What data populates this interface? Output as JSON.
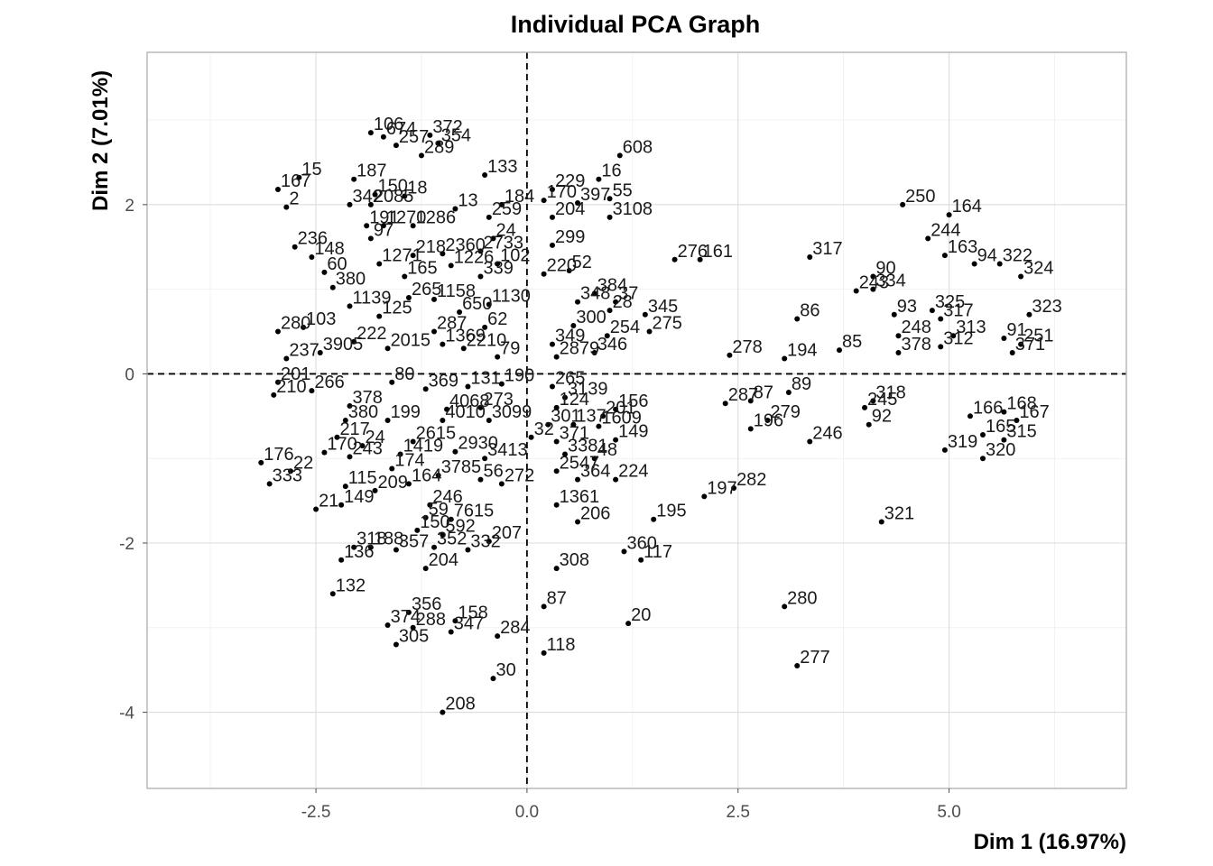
{
  "chart_data": {
    "type": "scatter",
    "title": "Individual PCA Graph",
    "xlabel": "Dim 1 (16.97%)",
    "ylabel": "Dim 2 (7.01%)",
    "xlim": [
      -4.5,
      7.1
    ],
    "ylim": [
      -4.9,
      3.8
    ],
    "x_ticks": [
      -2.5,
      0.0,
      2.5,
      5.0
    ],
    "x_tick_labels": [
      "-2.5",
      "0.0",
      "2.5",
      "5.0"
    ],
    "y_ticks": [
      -4,
      -2,
      0,
      2
    ],
    "y_tick_labels": [
      "-4",
      "-2",
      "0",
      "2"
    ],
    "grid": true,
    "reference_lines": {
      "x": 0,
      "y": 0,
      "style": "dashed"
    },
    "point_color": "#000000",
    "points": [
      {
        "label": "106",
        "x": -1.85,
        "y": 2.85
      },
      {
        "label": "674",
        "x": -1.7,
        "y": 2.8
      },
      {
        "label": "372",
        "x": -1.15,
        "y": 2.82
      },
      {
        "label": "354",
        "x": -1.05,
        "y": 2.72
      },
      {
        "label": "257",
        "x": -1.55,
        "y": 2.7
      },
      {
        "label": "289",
        "x": -1.25,
        "y": 2.58
      },
      {
        "label": "15",
        "x": -2.7,
        "y": 2.32
      },
      {
        "label": "167",
        "x": -2.95,
        "y": 2.18
      },
      {
        "label": "2",
        "x": -2.85,
        "y": 1.97
      },
      {
        "label": "187",
        "x": -2.05,
        "y": 2.3
      },
      {
        "label": "150",
        "x": -1.8,
        "y": 2.12
      },
      {
        "label": "18",
        "x": -1.45,
        "y": 2.1
      },
      {
        "label": "342",
        "x": -2.1,
        "y": 2.0
      },
      {
        "label": "2085",
        "x": -1.85,
        "y": 2.0
      },
      {
        "label": "191",
        "x": -1.9,
        "y": 1.75
      },
      {
        "label": "97",
        "x": -1.85,
        "y": 1.6
      },
      {
        "label": "1270",
        "x": -1.7,
        "y": 1.75
      },
      {
        "label": "1286",
        "x": -1.35,
        "y": 1.75
      },
      {
        "label": "13",
        "x": -0.85,
        "y": 1.95
      },
      {
        "label": "259",
        "x": -0.45,
        "y": 1.85
      },
      {
        "label": "133",
        "x": -0.5,
        "y": 2.35
      },
      {
        "label": "184",
        "x": -0.3,
        "y": 2.0
      },
      {
        "label": "24",
        "x": -0.4,
        "y": 1.6
      },
      {
        "label": "236",
        "x": -2.75,
        "y": 1.5
      },
      {
        "label": "148",
        "x": -2.55,
        "y": 1.38
      },
      {
        "label": "60",
        "x": -2.4,
        "y": 1.2
      },
      {
        "label": "380",
        "x": -2.3,
        "y": 1.02
      },
      {
        "label": "1271",
        "x": -1.75,
        "y": 1.3
      },
      {
        "label": "218",
        "x": -1.35,
        "y": 1.4
      },
      {
        "label": "165",
        "x": -1.45,
        "y": 1.15
      },
      {
        "label": "2360",
        "x": -1.0,
        "y": 1.42
      },
      {
        "label": "1226",
        "x": -0.9,
        "y": 1.28
      },
      {
        "label": "2733",
        "x": -0.55,
        "y": 1.45
      },
      {
        "label": "102",
        "x": -0.35,
        "y": 1.3
      },
      {
        "label": "339",
        "x": -0.55,
        "y": 1.15
      },
      {
        "label": "1139",
        "x": -2.1,
        "y": 0.8
      },
      {
        "label": "125",
        "x": -1.75,
        "y": 0.68
      },
      {
        "label": "265",
        "x": -1.4,
        "y": 0.9
      },
      {
        "label": "1158",
        "x": -1.1,
        "y": 0.88
      },
      {
        "label": "650",
        "x": -0.8,
        "y": 0.73
      },
      {
        "label": "1130",
        "x": -0.45,
        "y": 0.82
      },
      {
        "label": "62",
        "x": -0.5,
        "y": 0.55
      },
      {
        "label": "2210",
        "x": -0.75,
        "y": 0.3
      },
      {
        "label": "79",
        "x": -0.35,
        "y": 0.2
      },
      {
        "label": "280",
        "x": -2.95,
        "y": 0.5
      },
      {
        "label": "103",
        "x": -2.65,
        "y": 0.55
      },
      {
        "label": "237",
        "x": -2.85,
        "y": 0.18
      },
      {
        "label": "3905",
        "x": -2.45,
        "y": 0.25
      },
      {
        "label": "222",
        "x": -2.05,
        "y": 0.38
      },
      {
        "label": "2015",
        "x": -1.65,
        "y": 0.3
      },
      {
        "label": "287",
        "x": -1.1,
        "y": 0.5
      },
      {
        "label": "1369",
        "x": -1.0,
        "y": 0.35
      },
      {
        "label": "201",
        "x": -2.95,
        "y": -0.1
      },
      {
        "label": "210",
        "x": -3.0,
        "y": -0.25
      },
      {
        "label": "266",
        "x": -2.55,
        "y": -0.2
      },
      {
        "label": "80",
        "x": -1.6,
        "y": -0.1
      },
      {
        "label": "369",
        "x": -1.2,
        "y": -0.18
      },
      {
        "label": "131",
        "x": -0.7,
        "y": -0.15
      },
      {
        "label": "190",
        "x": -0.3,
        "y": -0.12
      },
      {
        "label": "4068",
        "x": -0.95,
        "y": -0.42
      },
      {
        "label": "273",
        "x": -0.55,
        "y": -0.4
      },
      {
        "label": "378",
        "x": -2.1,
        "y": -0.38
      },
      {
        "label": "380b",
        "x": -2.15,
        "y": -0.55
      },
      {
        "label": "199",
        "x": -1.65,
        "y": -0.55
      },
      {
        "label": "4010",
        "x": -1.0,
        "y": -0.55
      },
      {
        "label": "3099",
        "x": -0.45,
        "y": -0.55
      },
      {
        "label": "217",
        "x": -2.25,
        "y": -0.75
      },
      {
        "label": "24b",
        "x": -1.95,
        "y": -0.85
      },
      {
        "label": "2615",
        "x": -1.35,
        "y": -0.8
      },
      {
        "label": "243",
        "x": -2.1,
        "y": -0.98
      },
      {
        "label": "1419",
        "x": -1.5,
        "y": -0.95
      },
      {
        "label": "174",
        "x": -1.6,
        "y": -1.12
      },
      {
        "label": "2930",
        "x": -0.85,
        "y": -0.92
      },
      {
        "label": "3413",
        "x": -0.5,
        "y": -1.0
      },
      {
        "label": "176",
        "x": -3.15,
        "y": -1.05
      },
      {
        "label": "333",
        "x": -3.05,
        "y": -1.3
      },
      {
        "label": "22",
        "x": -2.8,
        "y": -1.15
      },
      {
        "label": "170",
        "x": -2.4,
        "y": -0.93
      },
      {
        "label": "115",
        "x": -2.15,
        "y": -1.33
      },
      {
        "label": "209",
        "x": -1.8,
        "y": -1.38
      },
      {
        "label": "164b",
        "x": -1.4,
        "y": -1.3
      },
      {
        "label": "3785",
        "x": -1.05,
        "y": -1.2
      },
      {
        "label": "56",
        "x": -0.55,
        "y": -1.25
      },
      {
        "label": "272",
        "x": -0.3,
        "y": -1.3
      },
      {
        "label": "21",
        "x": -2.5,
        "y": -1.6
      },
      {
        "label": "149",
        "x": -2.2,
        "y": -1.55
      },
      {
        "label": "246b",
        "x": -1.15,
        "y": -1.55
      },
      {
        "label": "59",
        "x": -1.2,
        "y": -1.7
      },
      {
        "label": "7615",
        "x": -0.9,
        "y": -1.72
      },
      {
        "label": "150b",
        "x": -1.3,
        "y": -1.85
      },
      {
        "label": "592",
        "x": -1.0,
        "y": -1.9
      },
      {
        "label": "352",
        "x": -1.1,
        "y": -2.05
      },
      {
        "label": "332",
        "x": -0.7,
        "y": -2.08
      },
      {
        "label": "207",
        "x": -0.45,
        "y": -1.98
      },
      {
        "label": "318b",
        "x": -2.05,
        "y": -2.05
      },
      {
        "label": "188",
        "x": -1.85,
        "y": -2.05
      },
      {
        "label": "357",
        "x": -1.55,
        "y": -2.08
      },
      {
        "label": "136",
        "x": -2.2,
        "y": -2.2
      },
      {
        "label": "204",
        "x": -1.2,
        "y": -2.3
      },
      {
        "label": "132",
        "x": -2.3,
        "y": -2.6
      },
      {
        "label": "356",
        "x": -1.4,
        "y": -2.82
      },
      {
        "label": "374",
        "x": -1.65,
        "y": -2.97
      },
      {
        "label": "288",
        "x": -1.35,
        "y": -3.0
      },
      {
        "label": "305",
        "x": -1.55,
        "y": -3.2
      },
      {
        "label": "158",
        "x": -0.85,
        "y": -2.92
      },
      {
        "label": "347",
        "x": -0.9,
        "y": -3.05
      },
      {
        "label": "284",
        "x": -0.35,
        "y": -3.1
      },
      {
        "label": "30",
        "x": -0.4,
        "y": -3.6
      },
      {
        "label": "208",
        "x": -1.0,
        "y": -4.0
      },
      {
        "label": "608",
        "x": 1.1,
        "y": 2.58
      },
      {
        "label": "16",
        "x": 0.85,
        "y": 2.3
      },
      {
        "label": "229",
        "x": 0.3,
        "y": 2.18
      },
      {
        "label": "55",
        "x": 0.98,
        "y": 2.07
      },
      {
        "label": "170b",
        "x": 0.2,
        "y": 2.05
      },
      {
        "label": "397",
        "x": 0.6,
        "y": 2.02
      },
      {
        "label": "204b",
        "x": 0.3,
        "y": 1.85
      },
      {
        "label": "3108",
        "x": 0.98,
        "y": 1.85
      },
      {
        "label": "299",
        "x": 0.3,
        "y": 1.52
      },
      {
        "label": "220",
        "x": 0.2,
        "y": 1.18
      },
      {
        "label": "52",
        "x": 0.5,
        "y": 1.22
      },
      {
        "label": "384",
        "x": 0.8,
        "y": 0.95
      },
      {
        "label": "348",
        "x": 0.6,
        "y": 0.85
      },
      {
        "label": "37",
        "x": 1.05,
        "y": 0.85
      },
      {
        "label": "28",
        "x": 0.98,
        "y": 0.75
      },
      {
        "label": "300",
        "x": 0.55,
        "y": 0.57
      },
      {
        "label": "345",
        "x": 1.4,
        "y": 0.7
      },
      {
        "label": "254",
        "x": 0.95,
        "y": 0.45
      },
      {
        "label": "275",
        "x": 1.45,
        "y": 0.5
      },
      {
        "label": "349",
        "x": 0.3,
        "y": 0.35
      },
      {
        "label": "2879",
        "x": 0.35,
        "y": 0.2
      },
      {
        "label": "346",
        "x": 0.8,
        "y": 0.25
      },
      {
        "label": "276",
        "x": 1.75,
        "y": 1.35
      },
      {
        "label": "161",
        "x": 2.05,
        "y": 1.35
      },
      {
        "label": "265b",
        "x": 0.3,
        "y": -0.15
      },
      {
        "label": "3139",
        "x": 0.45,
        "y": -0.28
      },
      {
        "label": "124",
        "x": 0.35,
        "y": -0.4
      },
      {
        "label": "156",
        "x": 1.05,
        "y": -0.42
      },
      {
        "label": "201b",
        "x": 0.9,
        "y": -0.5
      },
      {
        "label": "301",
        "x": 0.25,
        "y": -0.6
      },
      {
        "label": "137",
        "x": 0.55,
        "y": -0.6
      },
      {
        "label": "1609",
        "x": 0.85,
        "y": -0.62
      },
      {
        "label": "32",
        "x": 0.05,
        "y": -0.75
      },
      {
        "label": "371",
        "x": 0.35,
        "y": -0.8
      },
      {
        "label": "149b",
        "x": 1.05,
        "y": -0.78
      },
      {
        "label": "3381",
        "x": 0.45,
        "y": -0.95
      },
      {
        "label": "48",
        "x": 0.8,
        "y": -1.0
      },
      {
        "label": "2547",
        "x": 0.35,
        "y": -1.15
      },
      {
        "label": "364",
        "x": 0.6,
        "y": -1.25
      },
      {
        "label": "224",
        "x": 1.05,
        "y": -1.25
      },
      {
        "label": "1361",
        "x": 0.35,
        "y": -1.55
      },
      {
        "label": "206",
        "x": 0.6,
        "y": -1.75
      },
      {
        "label": "195",
        "x": 1.5,
        "y": -1.72
      },
      {
        "label": "360",
        "x": 1.15,
        "y": -2.1
      },
      {
        "label": "117",
        "x": 1.35,
        "y": -2.2
      },
      {
        "label": "308",
        "x": 0.35,
        "y": -2.3
      },
      {
        "label": "87",
        "x": 0.2,
        "y": -2.75
      },
      {
        "label": "20",
        "x": 1.2,
        "y": -2.95
      },
      {
        "label": "118",
        "x": 0.2,
        "y": -3.3
      },
      {
        "label": "278",
        "x": 2.4,
        "y": 0.22
      },
      {
        "label": "194",
        "x": 3.05,
        "y": 0.18
      },
      {
        "label": "287b",
        "x": 2.35,
        "y": -0.35
      },
      {
        "label": "87b",
        "x": 2.65,
        "y": -0.32
      },
      {
        "label": "89",
        "x": 3.1,
        "y": -0.22
      },
      {
        "label": "279",
        "x": 2.85,
        "y": -0.55
      },
      {
        "label": "196",
        "x": 2.65,
        "y": -0.65
      },
      {
        "label": "246",
        "x": 3.35,
        "y": -0.8
      },
      {
        "label": "197",
        "x": 2.1,
        "y": -1.45
      },
      {
        "label": "282",
        "x": 2.45,
        "y": -1.35
      },
      {
        "label": "280b",
        "x": 3.05,
        "y": -2.75
      },
      {
        "label": "277",
        "x": 3.2,
        "y": -3.45
      },
      {
        "label": "317",
        "x": 3.35,
        "y": 1.38
      },
      {
        "label": "86",
        "x": 3.2,
        "y": 0.65
      },
      {
        "label": "85",
        "x": 3.7,
        "y": 0.28
      },
      {
        "label": "243b",
        "x": 3.9,
        "y": 0.98
      },
      {
        "label": "90",
        "x": 4.1,
        "y": 1.15
      },
      {
        "label": "334",
        "x": 4.1,
        "y": 1.0
      },
      {
        "label": "93",
        "x": 4.35,
        "y": 0.7
      },
      {
        "label": "325",
        "x": 4.8,
        "y": 0.75
      },
      {
        "label": "317b",
        "x": 4.9,
        "y": 0.65
      },
      {
        "label": "248",
        "x": 4.4,
        "y": 0.45
      },
      {
        "label": "313",
        "x": 5.05,
        "y": 0.45
      },
      {
        "label": "378b",
        "x": 4.4,
        "y": 0.25
      },
      {
        "label": "312",
        "x": 4.9,
        "y": 0.32
      },
      {
        "label": "318",
        "x": 4.1,
        "y": -0.32
      },
      {
        "label": "245",
        "x": 4.0,
        "y": -0.4
      },
      {
        "label": "92",
        "x": 4.05,
        "y": -0.6
      },
      {
        "label": "321",
        "x": 4.2,
        "y": -1.75
      },
      {
        "label": "250",
        "x": 4.45,
        "y": 2.0
      },
      {
        "label": "164",
        "x": 5.0,
        "y": 1.88
      },
      {
        "label": "244",
        "x": 4.75,
        "y": 1.6
      },
      {
        "label": "163",
        "x": 4.95,
        "y": 1.4
      },
      {
        "label": "94",
        "x": 5.3,
        "y": 1.3
      },
      {
        "label": "322",
        "x": 5.6,
        "y": 1.3
      },
      {
        "label": "324",
        "x": 5.85,
        "y": 1.15
      },
      {
        "label": "323",
        "x": 5.95,
        "y": 0.7
      },
      {
        "label": "91",
        "x": 5.65,
        "y": 0.42
      },
      {
        "label": "251",
        "x": 5.85,
        "y": 0.35
      },
      {
        "label": "371b",
        "x": 5.75,
        "y": 0.25
      },
      {
        "label": "166",
        "x": 5.25,
        "y": -0.5
      },
      {
        "label": "168",
        "x": 5.65,
        "y": -0.45
      },
      {
        "label": "167b",
        "x": 5.8,
        "y": -0.55
      },
      {
        "label": "165b",
        "x": 5.4,
        "y": -0.72
      },
      {
        "label": "319",
        "x": 4.95,
        "y": -0.9
      },
      {
        "label": "320",
        "x": 5.4,
        "y": -1.0
      },
      {
        "label": "315",
        "x": 5.65,
        "y": -0.78
      }
    ]
  }
}
